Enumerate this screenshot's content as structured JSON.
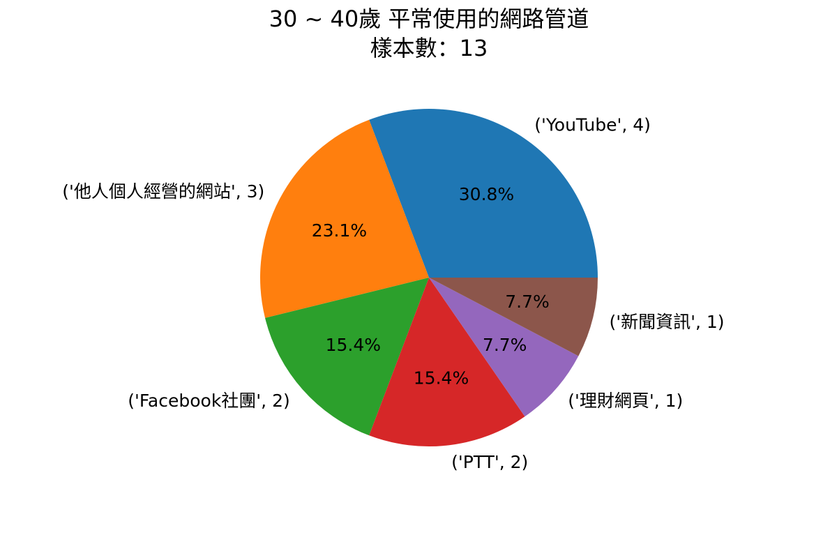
{
  "chart_data": {
    "type": "pie",
    "title": "30 ~ 40歲  平常使用的網路管道",
    "subtitle": "樣本數：13",
    "start_angle_deg": 0,
    "direction": "counterclockwise",
    "slices": [
      {
        "label": "('YouTube', 4)",
        "value": 4,
        "percent_label": "30.8%",
        "color": "#1f77b4"
      },
      {
        "label": "('他人個人經營的網站', 3)",
        "value": 3,
        "percent_label": "23.1%",
        "color": "#ff7f0e"
      },
      {
        "label": "('Facebook社團', 2)",
        "value": 2,
        "percent_label": "15.4%",
        "color": "#2ca02c"
      },
      {
        "label": "('PTT', 2)",
        "value": 2,
        "percent_label": "15.4%",
        "color": "#d62728"
      },
      {
        "label": "('理財網頁', 1)",
        "value": 1,
        "percent_label": "7.7%",
        "color": "#9467bd"
      },
      {
        "label": "('新聞資訊', 1)",
        "value": 1,
        "percent_label": "7.7%",
        "color": "#8c564b"
      }
    ]
  }
}
